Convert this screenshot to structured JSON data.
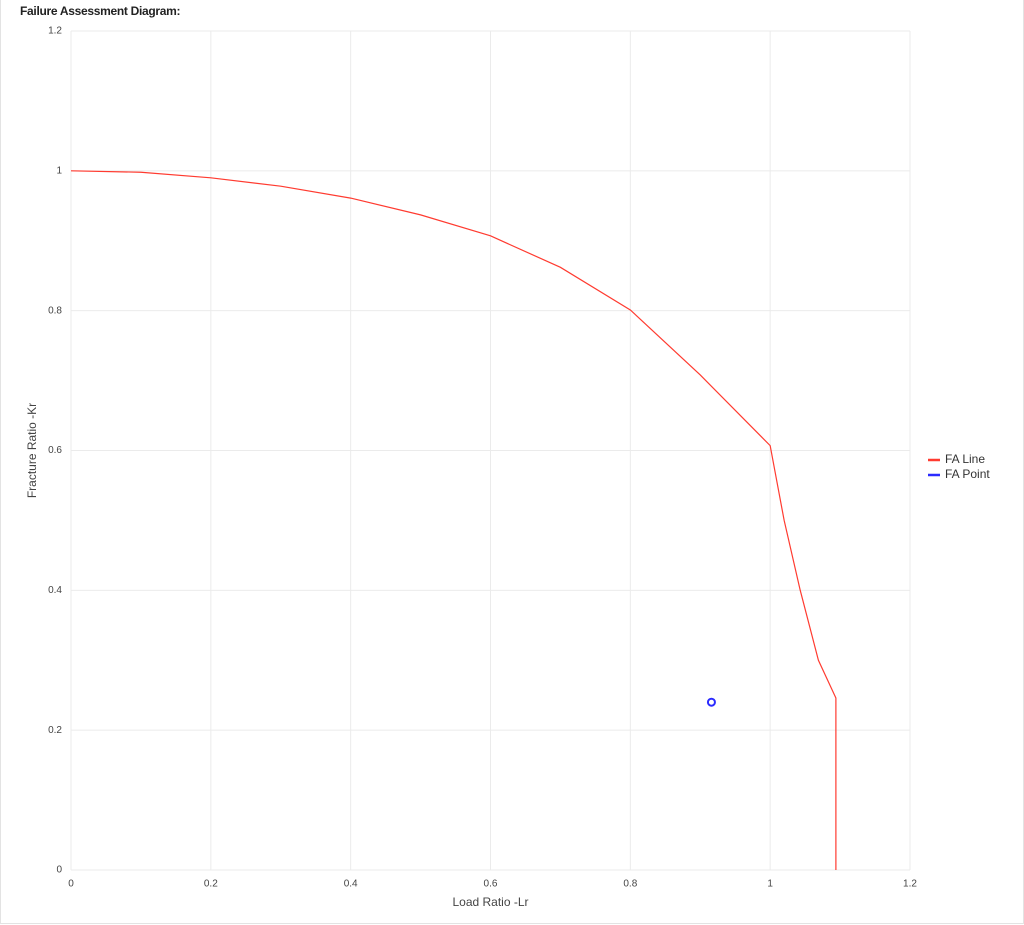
{
  "chart_data": {
    "type": "line",
    "title": "Failure Assessment Diagram:",
    "x_label": "Load Ratio -Lr",
    "y_label": "Fracture Ratio -Kr",
    "xlim": [
      0,
      1.2
    ],
    "ylim": [
      0,
      1.2
    ],
    "xticks": [
      0,
      0.2,
      0.4,
      0.6,
      0.8,
      1,
      1.2
    ],
    "yticks": [
      0,
      0.2,
      0.4,
      0.6,
      0.8,
      1,
      1.2
    ],
    "grid": true,
    "legend": "right",
    "series": [
      {
        "name": "FA Line",
        "color": "#ff3b30",
        "mode": "line",
        "x": [
          0,
          0.1,
          0.2,
          0.3,
          0.4,
          0.5,
          0.6,
          0.7,
          0.8,
          0.9,
          1.0,
          1.02,
          1.043,
          1.069,
          1.094,
          1.094
        ],
        "values": [
          1,
          0.998,
          0.99,
          0.978,
          0.961,
          0.937,
          0.907,
          0.862,
          0.801,
          0.708,
          0.607,
          0.5,
          0.4,
          0.3,
          0.246,
          0
        ]
      },
      {
        "name": "FA Point",
        "color": "#2b2bff",
        "mode": "marker",
        "x": [
          0.916
        ],
        "values": [
          0.24
        ]
      }
    ]
  }
}
